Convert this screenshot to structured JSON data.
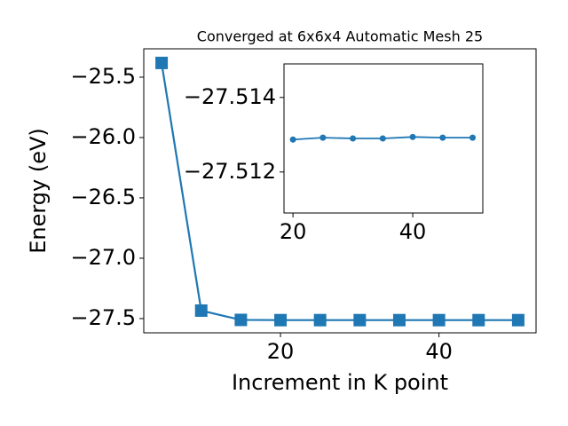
{
  "chart_data": [
    {
      "type": "line",
      "title": "Converged at 6x6x4 Automatic Mesh 25",
      "x_label": "Increment in K point",
      "y_label": "Energy (eV)",
      "x": [
        5,
        10,
        15,
        20,
        25,
        30,
        35,
        40,
        45,
        50
      ],
      "series": [
        {
          "color": "#1f77b4",
          "marker": "square",
          "values": [
            -25.382,
            -27.434,
            -27.511,
            -27.51287,
            -27.51292,
            -27.5129,
            -27.5129,
            -27.51294,
            -27.51292,
            -27.51292
          ]
        }
      ],
      "xlim": [
        2.75,
        52.25
      ],
      "xticks": [
        20,
        40
      ],
      "ylim": [
        -27.618,
        -25.265
      ],
      "yticks": [
        {
          "value": -27.5,
          "label": "−27.5"
        },
        {
          "value": -27.0,
          "label": "−27.0"
        },
        {
          "value": -26.5,
          "label": "−26.5"
        },
        {
          "value": -26.0,
          "label": "−26.0"
        },
        {
          "value": -25.5,
          "label": "−25.5"
        }
      ]
    },
    {
      "type": "line",
      "x": [
        20,
        25,
        30,
        35,
        40,
        45,
        50
      ],
      "series": [
        {
          "color": "#1f77b4",
          "marker": "circle",
          "values": [
            -27.51287,
            -27.51292,
            -27.5129,
            -27.5129,
            -27.51294,
            -27.51292,
            -27.51292
          ]
        }
      ],
      "xlim": [
        18.5,
        51.7
      ],
      "xticks": [
        20,
        40
      ],
      "ylim": [
        -27.5109,
        -27.5149
      ],
      "yticks": [
        {
          "value": -27.514,
          "label": "−27.514"
        },
        {
          "value": -27.512,
          "label": "−27.512"
        }
      ]
    }
  ]
}
